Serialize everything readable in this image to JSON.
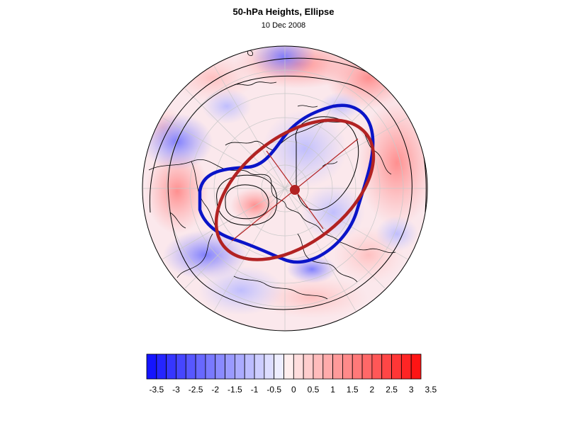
{
  "header": {
    "title": "50-hPa Heights, Ellipse",
    "subtitle": "10 Dec 2008"
  },
  "map": {
    "projection": "north-polar-stereographic",
    "field_colormap": "blue-white-red anomaly",
    "vortex_contour_color": "#0a14c8",
    "ellipse_color": "#b22222",
    "centroid_color": "#b22222",
    "coastline_color": "#000000",
    "height_contour_color": "#000000"
  },
  "colorbar": {
    "ticks": [
      "-3.5",
      "-3",
      "-2.5",
      "-2",
      "-1.5",
      "-1",
      "-0.5",
      "0",
      "0.5",
      "1",
      "1.5",
      "2",
      "2.5",
      "3",
      "3.5"
    ],
    "levels": 28,
    "min_color": "#1414ff",
    "mid_color": "#ffffff",
    "max_color": "#ff1414"
  }
}
